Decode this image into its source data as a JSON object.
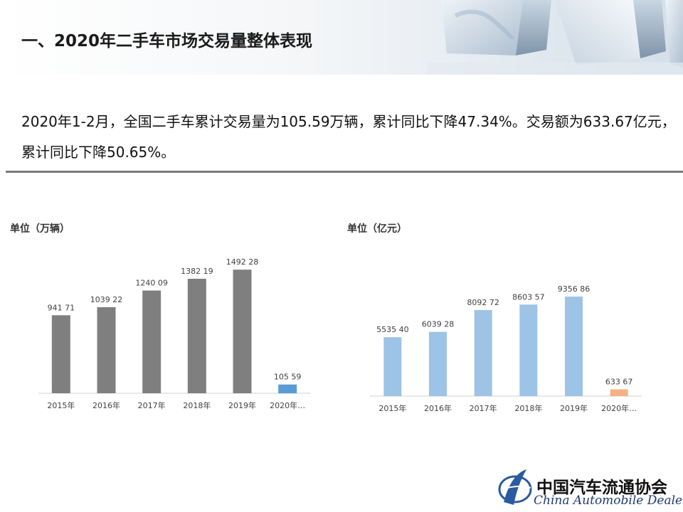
{
  "header": {
    "title": "一、2020年二手车市场交易量整体表现"
  },
  "summary": {
    "text": "2020年1-2月，全国二手车累计交易量为105.59万辆，累计同比下降47.34%。交易额为633.67亿元，累计同比下降50.65%。"
  },
  "chart_data": [
    {
      "type": "bar",
      "unit_label": "单位（万辆）",
      "categories": [
        "2015年",
        "2016年",
        "2017年",
        "2018年",
        "2019年",
        "2020年…"
      ],
      "values": [
        941.71,
        1039.22,
        1240.09,
        1382.19,
        1492.28,
        105.59
      ],
      "data_labels": [
        "941 71",
        "1039 22",
        "1240 09",
        "1382 19",
        "1492 28",
        "105 59"
      ],
      "colors": [
        "#7f7f7f",
        "#7f7f7f",
        "#7f7f7f",
        "#7f7f7f",
        "#7f7f7f",
        "#5b9bd5"
      ],
      "ylim": [
        0,
        1700
      ],
      "grid": false
    },
    {
      "type": "bar",
      "unit_label": "单位（亿元）",
      "categories": [
        "2015年",
        "2016年",
        "2017年",
        "2018年",
        "2019年",
        "2020年…"
      ],
      "values": [
        5535.4,
        6039.28,
        8092.72,
        8603.57,
        9356.86,
        633.67
      ],
      "data_labels": [
        "5535 40",
        "6039 28",
        "8092 72",
        "8603 57",
        "9356 86",
        "633 67"
      ],
      "colors": [
        "#9dc3e6",
        "#9dc3e6",
        "#9dc3e6",
        "#9dc3e6",
        "#9dc3e6",
        "#f4b183"
      ],
      "ylim": [
        0,
        11500
      ],
      "grid": false
    }
  ],
  "logo": {
    "name_cn": "中国汽车流通协会",
    "name_en": "China Automobile Dealers"
  }
}
